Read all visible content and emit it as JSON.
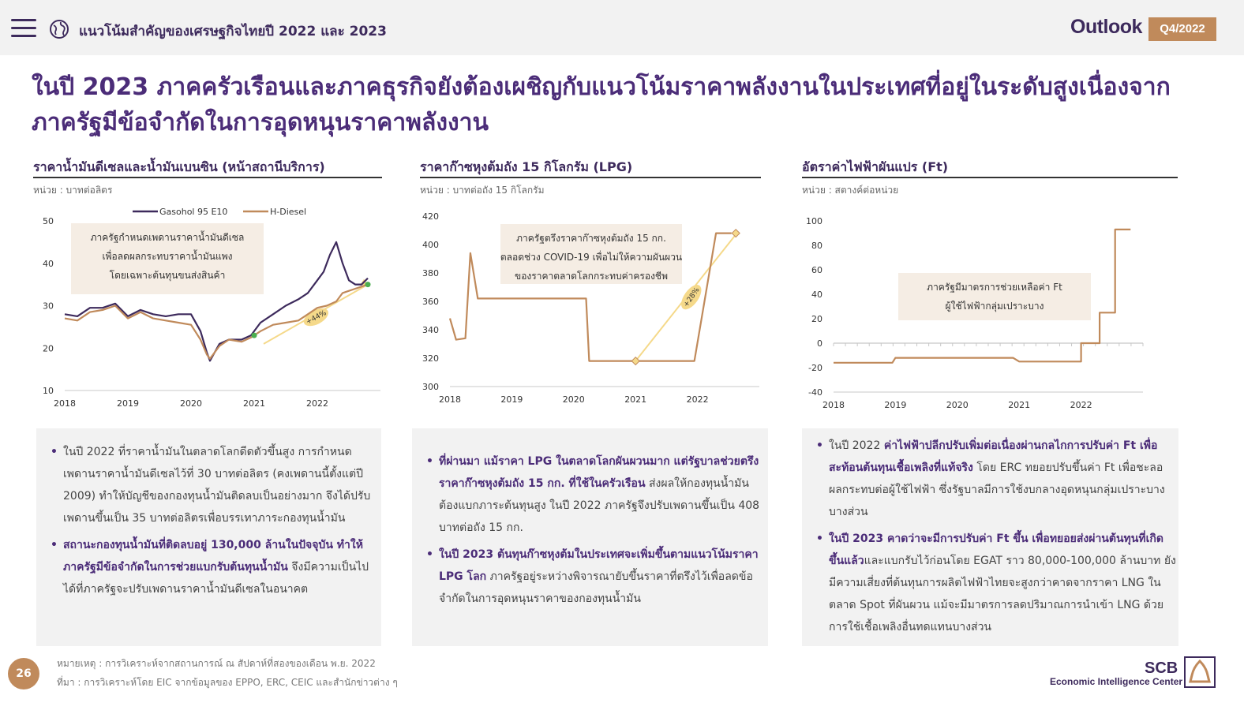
{
  "header": {
    "title": "แนวโน้มสำคัญของเศรษฐกิจไทยปี 2022 และ 2023",
    "brand": "Outlook",
    "quarter": "Q4/2022"
  },
  "headline": "ในปี 2023 ภาคครัวเรือนและภาคธุรกิจยังต้องเผชิญกับแนวโน้มราคาพลังงานในประเทศที่อยู่ในระดับสูงเนื่องจากภาครัฐมีข้อจำกัดในการอุดหนุนราคาพลังงาน",
  "colors": {
    "purple": "#4b2c78",
    "tan": "#c08a5b",
    "note_bg": "#f5ede4",
    "arrow": "#f5d98a"
  },
  "panels": [
    {
      "title": "ราคาน้ำมันดีเซลและน้ำมันเบนซิน (หน้าสถานีบริการ)",
      "unit": "หน่วย : บาทต่อลิตร"
    },
    {
      "title": "ราคาก๊าซหุงต้มถัง 15 กิโลกรัม (LPG)",
      "unit": "หน่วย : บาทต่อถัง 15 กิโลกรัม"
    },
    {
      "title": "อัตราค่าไฟฟ้าผันแปร (Ft)",
      "unit": "หน่วย : สตางค์ต่อหน่วย"
    }
  ],
  "chart_data": [
    {
      "type": "line",
      "x_ticks": [
        "2018",
        "2019",
        "2020",
        "2021",
        "2022"
      ],
      "ylim": [
        10,
        50
      ],
      "y_ticks": [
        10,
        20,
        30,
        40,
        50
      ],
      "legend_position": "top",
      "series": [
        {
          "name": "Gasohol 95 E10",
          "color": "#3d2a5c",
          "points": [
            [
              2018.0,
              28
            ],
            [
              2018.2,
              27.5
            ],
            [
              2018.4,
              29.5
            ],
            [
              2018.6,
              29.5
            ],
            [
              2018.8,
              30.5
            ],
            [
              2019.0,
              27.5
            ],
            [
              2019.2,
              29
            ],
            [
              2019.4,
              28
            ],
            [
              2019.6,
              27.5
            ],
            [
              2019.8,
              28
            ],
            [
              2020.0,
              28
            ],
            [
              2020.15,
              24
            ],
            [
              2020.25,
              19
            ],
            [
              2020.3,
              17
            ],
            [
              2020.45,
              21
            ],
            [
              2020.6,
              22
            ],
            [
              2020.8,
              22
            ],
            [
              2020.95,
              23
            ],
            [
              2021.1,
              26
            ],
            [
              2021.3,
              28
            ],
            [
              2021.5,
              30
            ],
            [
              2021.7,
              31.5
            ],
            [
              2021.85,
              33
            ],
            [
              2022.0,
              36
            ],
            [
              2022.1,
              38
            ],
            [
              2022.2,
              42
            ],
            [
              2022.3,
              45
            ],
            [
              2022.4,
              40
            ],
            [
              2022.5,
              36
            ],
            [
              2022.6,
              35
            ],
            [
              2022.7,
              35
            ],
            [
              2022.8,
              36.5
            ]
          ]
        },
        {
          "name": "H-Diesel",
          "color": "#c08a5b",
          "points": [
            [
              2018.0,
              27
            ],
            [
              2018.2,
              26.5
            ],
            [
              2018.4,
              28.5
            ],
            [
              2018.6,
              29
            ],
            [
              2018.8,
              30
            ],
            [
              2019.0,
              27
            ],
            [
              2019.2,
              28.5
            ],
            [
              2019.4,
              27
            ],
            [
              2019.6,
              26.5
            ],
            [
              2019.8,
              26
            ],
            [
              2020.0,
              25.5
            ],
            [
              2020.15,
              22
            ],
            [
              2020.25,
              18.5
            ],
            [
              2020.3,
              17.5
            ],
            [
              2020.45,
              20.5
            ],
            [
              2020.6,
              22
            ],
            [
              2020.8,
              21.5
            ],
            [
              2020.95,
              22.5
            ],
            [
              2021.1,
              24
            ],
            [
              2021.3,
              25.5
            ],
            [
              2021.5,
              26
            ],
            [
              2021.7,
              26.5
            ],
            [
              2021.85,
              28
            ],
            [
              2022.0,
              29.5
            ],
            [
              2022.15,
              30
            ],
            [
              2022.3,
              31
            ],
            [
              2022.4,
              33
            ],
            [
              2022.5,
              33.5
            ],
            [
              2022.6,
              34
            ],
            [
              2022.7,
              34.5
            ],
            [
              2022.8,
              35
            ]
          ]
        }
      ],
      "annotation": {
        "text": [
          "ภาครัฐกำหนดเพดานราคาน้ำมันดีเซล",
          "เพื่อลดผลกระทบราคาน้ำมันแพง",
          "โดยเฉพาะต้นทุนขนส่งสินค้า"
        ]
      },
      "trend_label": "+44%"
    },
    {
      "type": "line",
      "x_ticks": [
        "2018",
        "2019",
        "2020",
        "2021",
        "2022"
      ],
      "ylim": [
        300,
        420
      ],
      "y_ticks": [
        300,
        320,
        340,
        360,
        380,
        400,
        420
      ],
      "series": [
        {
          "name": "LPG",
          "points": [
            [
              2018.0,
              348
            ],
            [
              2018.1,
              333
            ],
            [
              2018.25,
              334
            ],
            [
              2018.33,
              394
            ],
            [
              2018.45,
              362
            ],
            [
              2019.0,
              362
            ],
            [
              2019.5,
              362
            ],
            [
              2020.0,
              362
            ],
            [
              2020.2,
              362
            ],
            [
              2020.25,
              318
            ],
            [
              2021.0,
              318
            ],
            [
              2021.5,
              318
            ],
            [
              2021.95,
              318
            ],
            [
              2022.3,
              408
            ],
            [
              2022.55,
              408
            ]
          ]
        }
      ],
      "annotation": {
        "text": [
          "ภาครัฐตรึงราคาก๊าซหุงต้มถัง 15 กก.",
          "ตลอดช่วง COVID-19 เพื่อไม่ให้ความผันผวน",
          "ของราคาตลาดโลกกระทบค่าครองชีพ"
        ]
      },
      "trend_label": "+28%"
    },
    {
      "type": "line",
      "x_ticks": [
        "2018",
        "2019",
        "2020",
        "2021",
        "2022"
      ],
      "ylim": [
        -40,
        100
      ],
      "y_ticks": [
        -40,
        -20,
        0,
        20,
        40,
        60,
        80,
        100
      ],
      "series": [
        {
          "name": "Ft",
          "points": [
            [
              2018.0,
              -16
            ],
            [
              2018.95,
              -16
            ],
            [
              2019.0,
              -12
            ],
            [
              2020.9,
              -12
            ],
            [
              2021.0,
              -15
            ],
            [
              2022.0,
              -15
            ],
            [
              2022.0,
              0
            ],
            [
              2022.3,
              0
            ],
            [
              2022.3,
              25
            ],
            [
              2022.55,
              25
            ],
            [
              2022.55,
              93
            ],
            [
              2022.8,
              93
            ]
          ]
        }
      ],
      "annotation": {
        "text": [
          "ภาครัฐมีมาตรการช่วยเหลือค่า Ft",
          "ผู้ใช้ไฟฟ้ากลุ่มเปราะบาง"
        ]
      }
    }
  ],
  "notes": [
    [
      {
        "parts": [
          {
            "t": "ในปี 2022 ที่ราคาน้ำมันในตลาดโลกดีดตัวขึ้นสูง การกำหนดเพดานราคาน้ำมันดีเซลไว้ที่ 30 บาทต่อลิตร (คงเพดานนี้ตั้งแต่ปี 2009) ทำให้บัญชีของกองทุนน้ำมันติดลบเป็นอย่างมาก จึงได้ปรับเพดานขึ้นเป็น 35 บาทต่อลิตรเพื่อบรรเทาภาระกองทุนน้ำมัน",
            "b": false
          }
        ]
      },
      {
        "parts": [
          {
            "t": "สถานะกองทุนน้ำมันที่ติดลบอยู่ 130,000 ล้านในปัจจุบัน ทำให้ภาครัฐมีข้อจำกัดในการช่วยแบกรับต้นทุนน้ำมัน",
            "b": true
          },
          {
            "t": " จึงมีความเป็นไปได้ที่ภาครัฐจะปรับเพดานราคาน้ำมันดีเซลในอนาคต",
            "b": false
          }
        ]
      }
    ],
    [
      {
        "parts": [
          {
            "t": "ที่ผ่านมา แม้ราคา LPG ในตลาดโลกผันผวนมาก แต่รัฐบาลช่วยตรึงราคาก๊าซหุงต้มถัง 15 กก. ที่ใช้ในครัวเรือน",
            "b": true
          },
          {
            "t": " ส่งผลให้กองทุนน้ำมันต้องแบกภาระต้นทุนสูง ในปี 2022 ภาครัฐจึงปรับเพดานขึ้นเป็น 408 บาทต่อถัง 15 กก.",
            "b": false
          }
        ]
      },
      {
        "parts": [
          {
            "t": "ในปี 2023 ต้นทุนก๊าซหุงต้มในประเทศจะเพิ่มขึ้นตามแนวโน้มราคา LPG โลก",
            "b": true
          },
          {
            "t": " ภาครัฐอยู่ระหว่างพิจารณายับขึ้นราคาที่ตรึงไว้เพื่อลดข้อจำกัดในการอุดหนุนราคาของกองทุนน้ำมัน",
            "b": false
          }
        ]
      }
    ],
    [
      {
        "parts": [
          {
            "t": "ในปี 2022 ",
            "b": false
          },
          {
            "t": "ค่าไฟฟ้าปลีกปรับเพิ่มต่อเนื่องผ่านกลไกการปรับค่า Ft เพื่อสะท้อนต้นทุนเชื้อเพลิงที่แท้จริง",
            "b": true
          },
          {
            "t": " โดย ERC ทยอยปรับขึ้นค่า Ft เพื่อชะลอผลกระทบต่อผู้ใช้ไฟฟ้า ซึ่งรัฐบาลมีการใช้งบกลางอุดหนุนกลุ่มเปราะบางบางส่วน",
            "b": false
          }
        ]
      },
      {
        "parts": [
          {
            "t": "ในปี 2023 คาดว่าจะมีการปรับค่า Ft ขึ้น เพื่อทยอยส่งผ่านต้นทุนที่เกิดขึ้นแล้ว",
            "b": true
          },
          {
            "t": "และแบกรับไว้ก่อนโดย EGAT ราว 80,000-100,000 ล้านบาท ยังมีความเสี่ยงที่ต้นทุนการผลิตไฟฟ้าไทยจะสูงกว่าคาดจากราคา LNG ในตลาด Spot ที่ผันผวน แม้จะมีมาตรการลดปริมาณการนำเข้า LNG ด้วยการใช้เชื้อเพลิงอื่นทดแทนบางส่วน",
            "b": false
          }
        ]
      }
    ]
  ],
  "footer": {
    "page": "26",
    "note": "หมายเหตุ : การวิเคราะห์จากสถานการณ์ ณ สัปดาห์ที่สองของเดือน พ.ย. 2022",
    "source": "ที่มา : การวิเคราะห์โดย EIC จากข้อมูลของ EPPO, ERC, CEIC และสำนักข่าวต่าง ๆ",
    "scb": "SCB",
    "eic": "Economic Intelligence Center"
  }
}
